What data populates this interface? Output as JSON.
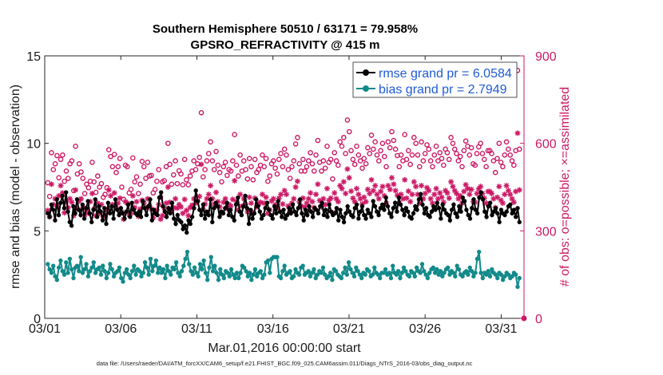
{
  "chart_data": {
    "type": "line",
    "title": "Southern Hemisphere 50510 / 63171 = 79.958%",
    "subtitle": "GPSRO_REFRACTIVITY @ 415 m",
    "xlabel": "Mar.01,2016 00:00:00 start",
    "ylabel": "rmse and bias (model - observation)",
    "y2label": "# of obs: o=possible; ×=assimilated",
    "xlim": [
      0,
      31.5
    ],
    "ylim": [
      0,
      15
    ],
    "y2lim": [
      0,
      900
    ],
    "xticks": [
      0,
      5,
      10,
      15,
      20,
      25,
      30
    ],
    "xtick_labels": [
      "03/01",
      "03/06",
      "03/11",
      "03/16",
      "03/21",
      "03/26",
      "03/31"
    ],
    "yticks": [
      0,
      5,
      10,
      15
    ],
    "y2ticks": [
      0,
      300,
      600,
      900
    ],
    "legend_position": "top-right",
    "grid": false,
    "series": [
      {
        "name": "rmse grand pr = 6.0584",
        "axis": "left",
        "color": "#000000",
        "marker": "filled-circle",
        "values": [
          6.0,
          5.8,
          6.5,
          6.2,
          5.6,
          6.8,
          5.9,
          6.6,
          7.0,
          6.3,
          7.2,
          6.1,
          5.5,
          5.3,
          6.4,
          6.0,
          6.8,
          6.2,
          5.9,
          6.5,
          5.7,
          6.3,
          6.7,
          6.0,
          5.5,
          6.2,
          6.8,
          5.8,
          6.4,
          6.1,
          5.6,
          6.3,
          5.4,
          6.6,
          6.0,
          6.4,
          5.7,
          6.8,
          6.2,
          5.9,
          6.3,
          6.0,
          5.7,
          6.1,
          6.5,
          5.8,
          6.6,
          6.2,
          6.0,
          5.9,
          6.1,
          5.8,
          6.7,
          6.3,
          5.9,
          6.4,
          6.8,
          5.6,
          6.2,
          6.0,
          5.9,
          6.9,
          7.2,
          6.4,
          6.1,
          5.8,
          6.3,
          6.0,
          6.6,
          5.7,
          5.4,
          5.9,
          5.6,
          5.5,
          5.1,
          5.3,
          4.9,
          5.6,
          5.4,
          5.8,
          6.3,
          7.3,
          6.7,
          6.2,
          5.9,
          6.5,
          5.7,
          6.1,
          5.9,
          6.8,
          5.5,
          6.3,
          6.6,
          6.4,
          5.8,
          6.1,
          6.0,
          6.3,
          6.6,
          5.9,
          6.2,
          5.8,
          5.6,
          6.5,
          6.9,
          6.1,
          5.9,
          6.4,
          7.0,
          6.3,
          5.4,
          6.2,
          5.7,
          6.0,
          6.8,
          6.4,
          6.1,
          5.7,
          5.9,
          6.3,
          6.6,
          6.2,
          5.9,
          5.7,
          6.4,
          6.0,
          6.7,
          6.1,
          5.8,
          6.2,
          5.7,
          5.9,
          6.3,
          6.0,
          6.5,
          6.1,
          5.9,
          6.3,
          6.8,
          6.0,
          5.6,
          6.2,
          5.9,
          6.4,
          6.1,
          5.8,
          6.3,
          6.2,
          6.0,
          6.4,
          6.6,
          5.9,
          6.2,
          5.8,
          6.5,
          6.1,
          5.9,
          6.0,
          6.3,
          5.6,
          6.2,
          5.8,
          5.5,
          6.0,
          6.4,
          6.1,
          5.9,
          5.8,
          6.3,
          6.5,
          5.7,
          6.1,
          6.4,
          5.9,
          5.7,
          6.2,
          6.0,
          5.8,
          6.7,
          6.4,
          6.1,
          5.9,
          6.3,
          6.5,
          6.2,
          6.9,
          6.4,
          6.0,
          5.8,
          6.3,
          6.6,
          6.1,
          6.9,
          6.5,
          6.2,
          5.9,
          6.3,
          6.1,
          5.8,
          5.7,
          6.0,
          6.4,
          6.2,
          6.8,
          7.1,
          6.5,
          6.0,
          6.3,
          5.9,
          5.8,
          6.1,
          6.4,
          6.2,
          6.6,
          6.3,
          5.7,
          6.5,
          6.2,
          6.0,
          5.9,
          5.6,
          6.2,
          6.5,
          6.0,
          5.8,
          6.4,
          6.1,
          6.9,
          6.7,
          6.2,
          5.9,
          5.7,
          6.3,
          6.8,
          6.2,
          6.0,
          6.9,
          7.2,
          6.8,
          6.1,
          5.8,
          6.4,
          6.6,
          5.9,
          6.1,
          6.3,
          6.0,
          5.5,
          6.2,
          6.0,
          5.9,
          6.1,
          6.4,
          6.5,
          6.0,
          6.2,
          5.8,
          6.3,
          5.5
        ]
      },
      {
        "name": "bias grand pr = 2.7949",
        "axis": "left",
        "color": "#138a8a",
        "marker": "filled-circle",
        "values": [
          3.1,
          2.8,
          2.6,
          3.0,
          2.4,
          2.2,
          2.9,
          3.3,
          2.7,
          2.5,
          3.2,
          2.6,
          3.4,
          2.8,
          2.3,
          2.9,
          3.0,
          2.7,
          3.5,
          2.6,
          2.8,
          3.1,
          2.4,
          2.7,
          2.9,
          3.2,
          2.6,
          2.8,
          2.9,
          2.5,
          3.0,
          2.7,
          2.3,
          2.6,
          3.1,
          2.8,
          2.4,
          2.6,
          2.7,
          2.9,
          2.3,
          2.1,
          2.6,
          2.8,
          2.5,
          2.3,
          2.7,
          3.0,
          2.5,
          2.8,
          2.7,
          2.4,
          2.6,
          3.2,
          2.9,
          2.5,
          3.4,
          2.7,
          3.0,
          3.3,
          2.6,
          2.9,
          2.6,
          2.8,
          2.3,
          3.0,
          2.7,
          2.5,
          2.9,
          2.8,
          3.2,
          2.6,
          2.4,
          2.7,
          3.0,
          3.4,
          3.8,
          3.1,
          2.7,
          2.5,
          2.9,
          2.6,
          2.4,
          3.1,
          2.8,
          3.3,
          2.6,
          2.2,
          2.9,
          3.5,
          2.7,
          3.0,
          2.6,
          2.2,
          2.8,
          2.5,
          2.3,
          2.7,
          2.6,
          2.4,
          2.8,
          2.5,
          2.3,
          2.6,
          2.3,
          2.6,
          3.0,
          2.9,
          2.7,
          2.4,
          2.6,
          2.2,
          2.5,
          2.8,
          2.4,
          2.6,
          2.7,
          2.3,
          2.5,
          3.2,
          3.3,
          2.6,
          3.4,
          3.5,
          3.5,
          3.5,
          2.4,
          2.3,
          2.7,
          3.0,
          2.5,
          2.6,
          2.7,
          2.3,
          2.4,
          2.8,
          2.6,
          2.5,
          2.9,
          3.0,
          2.5,
          2.6,
          2.7,
          2.4,
          2.6,
          2.8,
          2.3,
          2.5,
          2.7,
          2.6,
          2.9,
          2.5,
          2.3,
          2.4,
          2.6,
          2.2,
          2.8,
          2.7,
          2.5,
          2.4,
          2.3,
          2.6,
          2.9,
          2.5,
          3.2,
          2.8,
          2.6,
          2.4,
          2.9,
          2.7,
          2.5,
          2.3,
          2.6,
          2.5,
          2.8,
          2.7,
          2.4,
          2.5,
          2.9,
          2.6,
          2.5,
          2.3,
          2.6,
          2.6,
          2.8,
          2.5,
          2.6,
          2.3,
          3.0,
          2.6,
          2.5,
          2.7,
          2.3,
          2.6,
          2.9,
          2.7,
          2.5,
          2.4,
          2.7,
          2.6,
          2.4,
          2.9,
          2.7,
          2.6,
          3.1,
          2.7,
          2.5,
          2.3,
          2.6,
          2.8,
          2.9,
          2.6,
          2.8,
          2.5,
          2.7,
          2.4,
          2.6,
          2.8,
          2.9,
          2.5,
          2.7,
          2.6,
          2.4,
          3.0,
          2.8,
          2.5,
          2.4,
          2.6,
          2.7,
          2.5,
          2.9,
          2.7,
          2.4,
          2.6,
          3.4,
          3.8,
          2.6,
          2.3,
          2.6,
          2.5,
          2.7,
          2.4,
          2.8,
          2.6,
          2.5,
          2.3,
          2.6,
          2.5,
          2.2,
          2.4,
          2.6,
          2.5,
          2.3,
          2.4,
          2.6,
          2.5,
          1.8,
          2.3
        ]
      },
      {
        "name": "possible",
        "axis": "right",
        "color": "#cc1a66",
        "marker": "open-circle",
        "values": [
          465,
          418,
          568,
          510,
          530,
          558,
          482,
          545,
          560,
          470,
          505,
          480,
          530,
          540,
          438,
          590,
          495,
          530,
          502,
          480,
          428,
          460,
          448,
          470,
          535,
          468,
          432,
          488,
          450,
          462,
          415,
          425,
          448,
          578,
          555,
          520,
          562,
          500,
          520,
          548,
          450,
          408,
          525,
          520,
          430,
          442,
          550,
          468,
          485,
          428,
          460,
          538,
          520,
          480,
          535,
          488,
          490,
          430,
          442,
          470,
          510,
          415,
          468,
          472,
          520,
          600,
          528,
          460,
          492,
          540,
          462,
          506,
          495,
          458,
          545,
          475,
          458,
          488,
          505,
          540,
          510,
          530,
          552,
          705,
          485,
          510,
          540,
          565,
          605,
          540,
          510,
          572,
          525,
          500,
          468,
          520,
          535,
          490,
          510,
          505,
          540,
          630,
          525,
          488,
          560,
          505,
          540,
          510,
          478,
          548,
          520,
          475,
          545,
          500,
          510,
          525,
          560,
          520,
          548,
          470,
          488,
          530,
          540,
          515,
          495,
          545,
          565,
          520,
          580,
          560,
          510,
          480,
          520,
          540,
          598,
          620,
          530,
          505,
          545,
          505,
          520,
          540,
          568,
          530,
          505,
          560,
          610,
          535,
          505,
          540,
          515,
          590,
          535,
          545,
          478,
          568,
          540,
          525,
          605,
          590,
          620,
          565,
          680,
          640,
          575,
          545,
          528,
          590,
          560,
          540,
          515,
          548,
          530,
          585,
          565,
          628,
          580,
          605,
          560,
          540,
          575,
          600,
          555,
          520,
          605,
          585,
          640,
          610,
          580,
          558,
          520,
          560,
          540,
          630,
          545,
          575,
          528,
          560,
          620,
          600,
          560,
          520,
          605,
          540,
          565,
          595,
          580,
          540,
          520,
          560,
          590,
          540,
          568,
          548,
          525,
          580,
          568,
          545,
          620,
          600,
          580,
          565,
          540,
          555,
          520,
          575,
          608,
          590,
          560,
          585,
          530,
          525,
          565,
          588,
          600,
          565,
          545,
          520,
          575,
          575,
          565,
          540,
          500,
          548,
          600,
          535,
          520,
          560,
          605,
          580,
          560,
          540,
          525,
          575,
          850,
          580
        ]
      },
      {
        "name": "assimilated",
        "axis": "right",
        "color": "#cc1a66",
        "marker": "asterisk",
        "values": [
          370,
          348,
          460,
          390,
          410,
          385,
          420,
          455,
          430,
          362,
          400,
          380,
          410,
          398,
          352,
          440,
          375,
          402,
          410,
          380,
          355,
          372,
          360,
          400,
          428,
          375,
          352,
          395,
          360,
          390,
          348,
          355,
          372,
          440,
          420,
          390,
          430,
          380,
          395,
          412,
          365,
          340,
          400,
          395,
          355,
          360,
          420,
          380,
          400,
          350,
          375,
          405,
          395,
          378,
          410,
          385,
          375,
          345,
          360,
          372,
          390,
          340,
          352,
          378,
          395,
          450,
          398,
          370,
          380,
          410,
          378,
          390,
          382,
          360,
          408,
          370,
          352,
          380,
          388,
          410,
          395,
          402,
          418,
          528,
          375,
          392,
          410,
          425,
          455,
          410,
          392,
          432,
          400,
          382,
          360,
          398,
          410,
          376,
          390,
          385,
          408,
          472,
          400,
          372,
          425,
          385,
          410,
          390,
          365,
          415,
          395,
          362,
          412,
          382,
          392,
          398,
          425,
          395,
          415,
          360,
          372,
          402,
          410,
          390,
          378,
          412,
          425,
          392,
          438,
          425,
          385,
          365,
          395,
          410,
          450,
          470,
          400,
          385,
          412,
          382,
          395,
          410,
          430,
          400,
          380,
          425,
          460,
          404,
          382,
          410,
          390,
          445,
          404,
          412,
          362,
          430,
          410,
          400,
          455,
          445,
          468,
          428,
          512,
          482,
          436,
          412,
          400,
          445,
          425,
          410,
          392,
          415,
          400,
          442,
          428,
          475,
          438,
          455,
          425,
          410,
          435,
          452,
          420,
          395,
          455,
          442,
          482,
          460,
          438,
          422,
          395,
          425,
          410,
          475,
          412,
          436,
          400,
          425,
          468,
          452,
          425,
          395,
          455,
          410,
          428,
          448,
          438,
          410,
          395,
          425,
          445,
          410,
          430,
          415,
          398,
          438,
          430,
          412,
          468,
          452,
          438,
          428,
          410,
          420,
          395,
          435,
          458,
          445,
          425,
          442,
          400,
          398,
          428,
          444,
          452,
          428,
          412,
          395,
          435,
          435,
          428,
          410,
          380,
          415,
          452,
          405,
          395,
          425,
          455,
          438,
          425,
          410,
          398,
          435,
          635,
          440
        ]
      }
    ]
  },
  "footer": {
    "data_file": "data file: /Users/raeder/DAI/ATM_forcXX/CAM6_setup/f.e21.FHIST_BGC.f09_025.CAM6assim.011/Diags_NTrS_2016-03/obs_diag_output.nc"
  }
}
